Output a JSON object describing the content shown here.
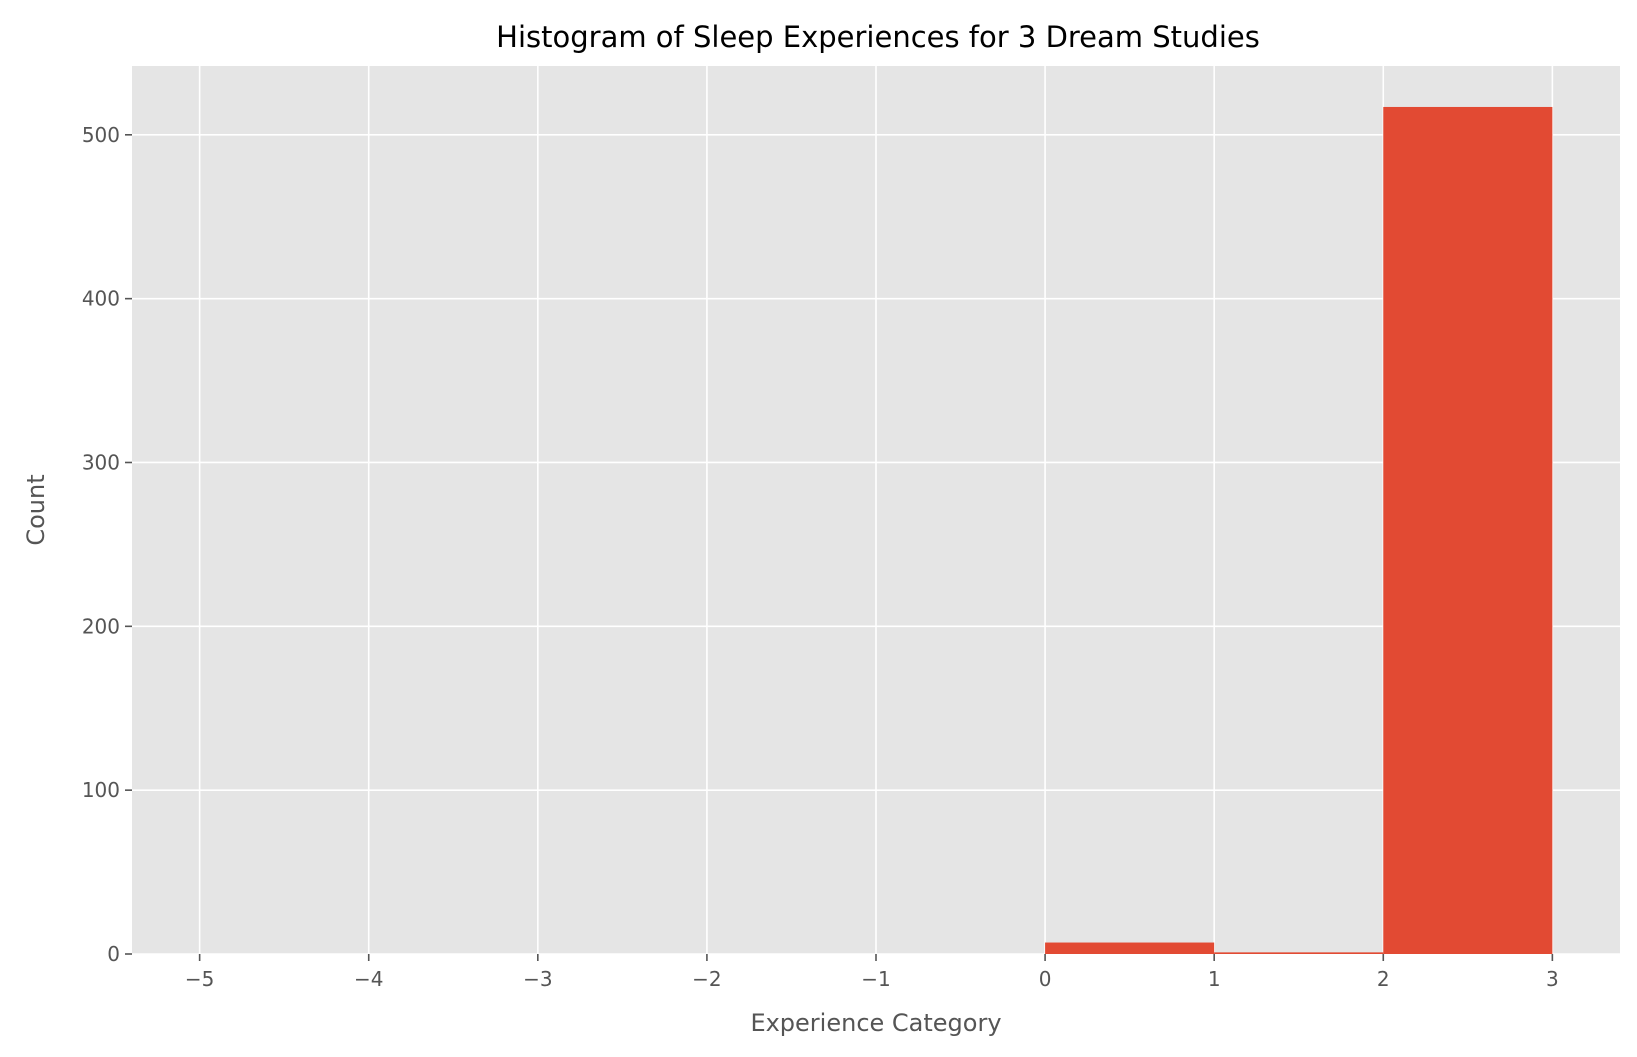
{
  "chart_data": {
    "type": "bar",
    "title": "Histogram of Sleep Experiences for 3 Dream Studies",
    "xlabel": "Experience Category",
    "ylabel": "Count",
    "xlim": [
      -5.4,
      3.4
    ],
    "ylim": [
      0,
      542
    ],
    "x_ticks": [
      -5,
      -4,
      -3,
      -2,
      -1,
      0,
      1,
      2,
      3
    ],
    "x_tick_labels": [
      "−5",
      "−4",
      "−3",
      "−2",
      "−1",
      "0",
      "1",
      "2",
      "3"
    ],
    "y_ticks": [
      0,
      100,
      200,
      300,
      400,
      500
    ],
    "y_tick_labels": [
      "0",
      "100",
      "200",
      "300",
      "400",
      "500"
    ],
    "bins": [
      {
        "start": 0,
        "end": 1,
        "value": 7
      },
      {
        "start": 1,
        "end": 2,
        "value": 1
      },
      {
        "start": 2,
        "end": 3,
        "value": 517
      }
    ],
    "grid": true,
    "colors": {
      "bar": "#E24A33",
      "plot_background": "#E5E5E5",
      "grid": "#FFFFFF"
    }
  }
}
